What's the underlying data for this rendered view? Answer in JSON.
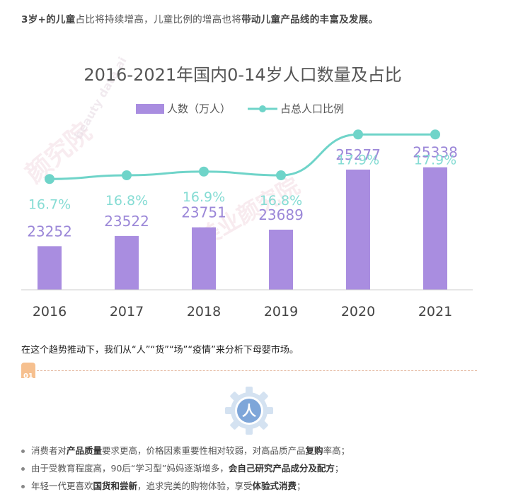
{
  "intro": {
    "p1": "3岁+的儿童",
    "p2": "占比将持续增高，儿童比例的增高也将",
    "p3": "带动儿童产品线的丰富及发展。"
  },
  "watermark": {
    "text_1": "颜究院",
    "text_2": "美业颜究院",
    "text_3": "beauty data.ai"
  },
  "colors": {
    "bar": "#a98de0",
    "line": "#6fd4c9",
    "bar_label": "#9b87d8",
    "ratio_label": "#86dcd4",
    "axis": "#cccccc"
  },
  "chart_data": {
    "type": "bar",
    "title": "2016-2021年国内0-14岁人口数量及占比",
    "categories": [
      "2016",
      "2017",
      "2018",
      "2019",
      "2020",
      "2021"
    ],
    "series": [
      {
        "name": "人数（万人）",
        "type": "bar",
        "values": [
          23252,
          23522,
          23751,
          23689,
          25277,
          25338
        ]
      },
      {
        "name": "占总人口比例",
        "type": "line",
        "values": [
          16.7,
          16.8,
          16.9,
          16.8,
          17.9,
          17.9
        ]
      }
    ],
    "ratio_labels": [
      "16.7%",
      "16.8%",
      "16.9%",
      "16.8%",
      "17.9%",
      "17.9%"
    ],
    "legend_position": "top",
    "grid": false
  },
  "paragraph": "在这个趋势推动下，我们从“人”“货”“场”“疫情”来分析下母婴市场。",
  "section_badge": "01",
  "icon": {
    "name": "person-gear-icon",
    "glyph": "人"
  },
  "bullets": [
    {
      "a": "消费者对",
      "b": "产品质量",
      "c": "要求更高，价格因素重要性相对较弱，对高品质产品",
      "d": "复购",
      "e": "率高；"
    },
    {
      "a": "由于受教育程度高，90后“学习型”妈妈逐渐增多，",
      "b": "会自己研究产品成分及配方",
      "c": "；"
    },
    {
      "a": "年轻一代更喜欢",
      "b": "国货和尝新",
      "c": "，追求完美的购物体验，享受",
      "d": "体验式消费",
      "e": "；"
    }
  ]
}
